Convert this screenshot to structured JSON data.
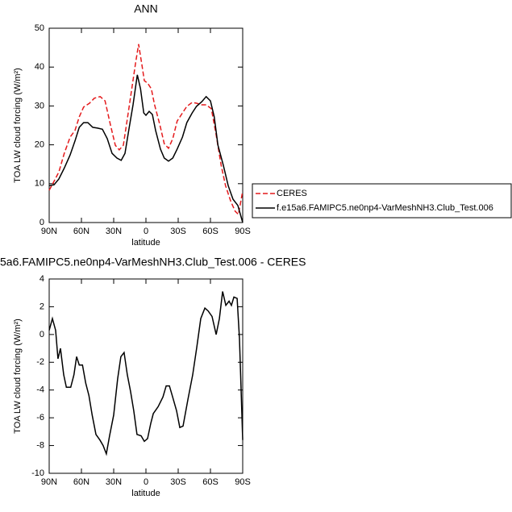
{
  "chart_data": [
    {
      "type": "line",
      "title": "ANN",
      "x_label": "latitude",
      "y_label": "TOA LW cloud forcing (W/m²)",
      "xlim": [
        90,
        -90
      ],
      "xticks": [
        {
          "value": 90,
          "label": "90N"
        },
        {
          "value": 60,
          "label": "60N"
        },
        {
          "value": 30,
          "label": "30N"
        },
        0,
        {
          "value": -30,
          "label": "30S"
        },
        {
          "value": -60,
          "label": "60S"
        },
        {
          "value": -90,
          "label": "90S"
        }
      ],
      "ylim": [
        0,
        50
      ],
      "yticks": [
        0,
        10,
        20,
        30,
        40,
        50
      ],
      "legend": "right",
      "series": [
        {
          "name": "CERES",
          "color": "#e41a1c",
          "dash": true,
          "x": [
            90,
            85.5,
            81,
            76,
            70.5,
            66,
            62,
            58,
            52.5,
            48,
            42.5,
            38,
            33,
            28.5,
            24.8,
            21,
            17,
            13.5,
            9.8,
            6.8,
            3.8,
            1.5,
            -1.5,
            -5,
            -8,
            -13,
            -17,
            -21,
            -25,
            -29,
            -34,
            -38,
            -43,
            -47,
            -52,
            -56,
            -60.8,
            -65,
            -70,
            -74,
            -79,
            -83,
            -86,
            -90
          ],
          "values": [
            8.3,
            10.6,
            13,
            17.8,
            22,
            23.7,
            27.2,
            29.7,
            30.7,
            32,
            32.4,
            31.3,
            25.1,
            19.9,
            18.7,
            19.9,
            27.2,
            33.8,
            40.7,
            45.9,
            40.7,
            36.5,
            35.9,
            34.4,
            30.3,
            25.1,
            20.3,
            19.1,
            21.6,
            26.1,
            28.2,
            29.9,
            30.9,
            30.7,
            30.3,
            30.3,
            29.3,
            23,
            14.7,
            9.5,
            5.4,
            2.9,
            2.1,
            8.1
          ]
        },
        {
          "name": "f.e15a6.FAMIPC5.ne0np4-VarMeshNH3.Club_Test.006",
          "color": "#000000",
          "dash": false,
          "x": [
            90,
            85.5,
            81,
            76,
            70.5,
            66,
            62,
            58,
            54,
            49.5,
            45,
            40.5,
            36,
            31.5,
            27,
            23,
            19.5,
            15.8,
            12,
            8,
            5,
            2,
            0,
            -3,
            -6,
            -9,
            -13.5,
            -17,
            -21,
            -25,
            -29,
            -34,
            -38,
            -43,
            -47,
            -52,
            -56,
            -60,
            -63.5,
            -67,
            -72,
            -76.5,
            -81,
            -85.5,
            -90
          ],
          "values": [
            9.5,
            9.7,
            11.2,
            14,
            17.4,
            21,
            24.5,
            25.7,
            25.7,
            24.5,
            24.3,
            24,
            21.6,
            17.8,
            16.6,
            16,
            17.8,
            24,
            30.3,
            38,
            34.4,
            28.2,
            27.6,
            28.6,
            27.8,
            23.7,
            18.9,
            16.6,
            15.8,
            16.6,
            18.9,
            22,
            25.7,
            28.2,
            29.9,
            31.1,
            32.4,
            31.3,
            27.2,
            19.9,
            14.7,
            9.5,
            6,
            4.4,
            0
          ]
        }
      ]
    },
    {
      "type": "line",
      "title": "5a6.FAMIPC5.ne0np4-VarMeshNH3.Club_Test.006 - CERES",
      "x_label": "latitude",
      "y_label": "TOA LW cloud forcing (W/m²)",
      "xlim": [
        90,
        -90
      ],
      "xticks": [
        {
          "value": 90,
          "label": "90N"
        },
        {
          "value": 60,
          "label": "60N"
        },
        {
          "value": 30,
          "label": "30N"
        },
        0,
        {
          "value": -30,
          "label": "30S"
        },
        {
          "value": -60,
          "label": "60S"
        },
        {
          "value": -90,
          "label": "90S"
        }
      ],
      "ylim": [
        -10,
        4
      ],
      "yticks": [
        -10,
        -8,
        -6,
        -4,
        -2,
        0,
        2,
        4
      ],
      "series": [
        {
          "color": "#000000",
          "dash": false,
          "x": [
            90,
            87,
            84,
            81.8,
            79.5,
            76.5,
            74,
            70,
            67,
            64.5,
            62,
            59,
            56,
            53,
            50,
            46.5,
            42.8,
            39.8,
            36.8,
            33.8,
            30,
            26.3,
            23.3,
            20.3,
            17.3,
            14.3,
            11.3,
            8.3,
            4.5,
            1.5,
            -1.5,
            -4.5,
            -6.8,
            -11.3,
            -15.8,
            -18.8,
            -21.8,
            -24.8,
            -28.5,
            -31.5,
            -34.5,
            -39,
            -43.5,
            -47.3,
            -51,
            -54.8,
            -57.8,
            -61.5,
            -65.3,
            -68.3,
            -71.3,
            -74.3,
            -77.3,
            -79.5,
            -81.8,
            -84.8,
            -87,
            -90
          ],
          "values": [
            0.3,
            1.15,
            0.3,
            -1.75,
            -1,
            -2.9,
            -3.8,
            -3.8,
            -2.9,
            -1.6,
            -2.2,
            -2.2,
            -3.5,
            -4.4,
            -5.8,
            -7.2,
            -7.6,
            -8,
            -8.6,
            -7.3,
            -5.8,
            -3.2,
            -1.6,
            -1.3,
            -2.9,
            -4.1,
            -5.5,
            -7.2,
            -7.3,
            -7.7,
            -7.5,
            -6.4,
            -5.7,
            -5.2,
            -4.5,
            -3.7,
            -3.7,
            -4.5,
            -5.5,
            -6.7,
            -6.6,
            -4.7,
            -2.9,
            -0.9,
            1.15,
            1.9,
            1.7,
            1.3,
            0,
            1.15,
            3.1,
            2.1,
            2.4,
            2.1,
            2.7,
            2.6,
            -0.3,
            -7.6
          ]
        }
      ]
    }
  ]
}
